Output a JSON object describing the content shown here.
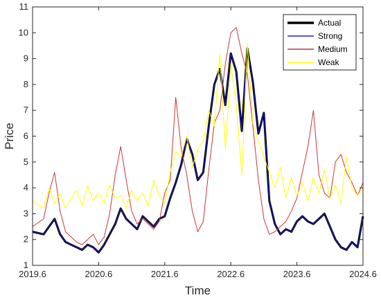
{
  "chart_data": {
    "type": "line",
    "title": "",
    "xlabel": "Time",
    "ylabel": "Price",
    "x_tick_labels": [
      "2019.6",
      "2020.6",
      "2021.6",
      "2022.6",
      "2023.6",
      "2024.6"
    ],
    "x_tick_values": [
      2019.5,
      2020.5,
      2021.5,
      2022.5,
      2023.5,
      2024.5
    ],
    "xlim": [
      2019.5,
      2024.5
    ],
    "ylim": [
      1,
      11
    ],
    "y_ticks": [
      1,
      2,
      3,
      4,
      5,
      6,
      7,
      8,
      9,
      10,
      11
    ],
    "grid": false,
    "legend_position": "top-right",
    "x": [
      2019.5,
      2019.667,
      2019.75,
      2019.833,
      2019.917,
      2020.0,
      2020.083,
      2020.167,
      2020.25,
      2020.333,
      2020.417,
      2020.5,
      2020.583,
      2020.667,
      2020.75,
      2020.833,
      2020.917,
      2021.0,
      2021.083,
      2021.167,
      2021.25,
      2021.333,
      2021.417,
      2021.5,
      2021.583,
      2021.667,
      2021.75,
      2021.833,
      2021.917,
      2022.0,
      2022.083,
      2022.167,
      2022.25,
      2022.333,
      2022.417,
      2022.5,
      2022.583,
      2022.667,
      2022.75,
      2022.833,
      2022.917,
      2023.0,
      2023.083,
      2023.167,
      2023.25,
      2023.333,
      2023.417,
      2023.5,
      2023.583,
      2023.667,
      2023.75,
      2023.833,
      2023.917,
      2024.0,
      2024.083,
      2024.167,
      2024.25,
      2024.333,
      2024.417,
      2024.5
    ],
    "series": [
      {
        "name": "Actual",
        "color": "#000000",
        "width": 3,
        "values": [
          2.3,
          2.2,
          2.5,
          2.8,
          2.2,
          1.9,
          1.8,
          1.7,
          1.6,
          1.8,
          1.7,
          1.5,
          1.8,
          2.2,
          2.6,
          3.2,
          2.8,
          2.6,
          2.4,
          2.9,
          2.7,
          2.5,
          2.8,
          2.9,
          3.6,
          4.2,
          4.9,
          5.9,
          5.3,
          4.3,
          4.6,
          6.4,
          8.0,
          8.6,
          7.2,
          9.2,
          8.5,
          6.2,
          9.4,
          8.1,
          6.1,
          6.9,
          3.5,
          2.6,
          2.2,
          2.4,
          2.3,
          2.7,
          2.9,
          2.7,
          2.6,
          2.8,
          3.0,
          2.5,
          2.0,
          1.7,
          1.6,
          1.9,
          1.7,
          2.9
        ]
      },
      {
        "name": "Strong",
        "color": "#2020dd",
        "width": 1,
        "values": [
          2.3,
          2.2,
          2.5,
          2.8,
          2.2,
          1.9,
          1.8,
          1.7,
          1.6,
          1.8,
          1.7,
          1.5,
          1.8,
          2.2,
          2.6,
          3.2,
          2.8,
          2.6,
          2.4,
          2.9,
          2.7,
          2.5,
          2.8,
          2.9,
          3.6,
          4.2,
          4.9,
          5.9,
          5.3,
          4.3,
          4.6,
          6.4,
          8.0,
          8.6,
          7.2,
          9.2,
          8.5,
          6.2,
          9.4,
          8.1,
          6.1,
          6.9,
          3.5,
          2.6,
          2.2,
          2.4,
          2.3,
          2.7,
          2.9,
          2.7,
          2.6,
          2.8,
          3.0,
          2.5,
          2.0,
          1.7,
          1.6,
          1.9,
          1.7,
          2.9
        ]
      },
      {
        "name": "Medium",
        "color": "#cc3333",
        "width": 1,
        "values": [
          2.5,
          2.8,
          3.8,
          4.6,
          3.1,
          2.3,
          2.1,
          1.9,
          1.8,
          2.0,
          2.2,
          1.8,
          2.1,
          3.0,
          4.5,
          5.6,
          4.3,
          3.1,
          2.6,
          2.8,
          2.6,
          2.4,
          2.7,
          3.8,
          4.3,
          7.5,
          5.5,
          4.5,
          3.1,
          2.3,
          2.7,
          4.7,
          6.5,
          7.0,
          8.8,
          10.0,
          10.2,
          9.2,
          8.4,
          6.4,
          4.3,
          2.8,
          2.2,
          2.3,
          2.5,
          2.7,
          3.1,
          3.6,
          4.6,
          5.6,
          7.0,
          4.5,
          3.8,
          3.6,
          5.0,
          5.3,
          4.6,
          4.2,
          3.7,
          4.2
        ]
      },
      {
        "name": "Weak",
        "color": "#ffff00",
        "width": 1,
        "values": [
          3.5,
          3.2,
          4.0,
          3.4,
          3.8,
          3.2,
          3.6,
          3.9,
          3.3,
          4.1,
          3.5,
          3.8,
          3.4,
          4.1,
          3.6,
          3.7,
          3.2,
          3.9,
          3.5,
          3.8,
          3.3,
          4.3,
          3.7,
          3.4,
          4.6,
          5.4,
          5.2,
          6.0,
          4.8,
          5.5,
          5.8,
          7.0,
          6.4,
          9.2,
          5.5,
          8.8,
          7.2,
          4.5,
          9.6,
          6.5,
          5.8,
          5.2,
          4.6,
          4.0,
          4.8,
          3.6,
          4.4,
          3.7,
          4.2,
          3.5,
          4.4,
          3.8,
          4.7,
          3.6,
          4.1,
          3.4,
          5.2,
          4.0,
          3.7,
          4.0
        ]
      }
    ]
  }
}
